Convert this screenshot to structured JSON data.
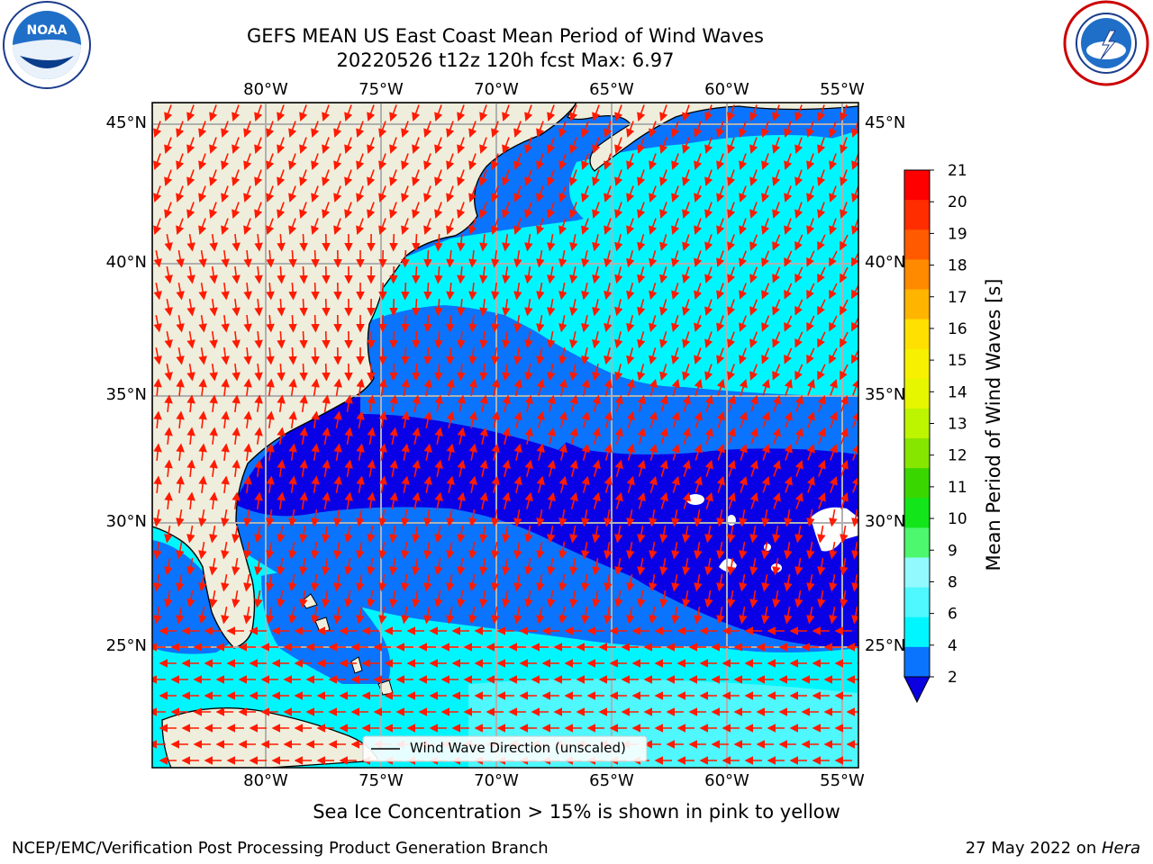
{
  "header": {
    "title_line1": "GEFS MEAN US East Coast Mean Period of Wind Waves",
    "title_line2": "20220526 t12z 120h fcst   Max: 6.97"
  },
  "logos": {
    "left": {
      "text": "NOAA",
      "ring_text": "NATIONAL OCEANIC AND ATMOSPHERIC ADMINISTRATION · U.S. DEPARTMENT OF COMMERCE"
    },
    "right": {
      "ring_text": "NATIONAL WEATHER SERVICE"
    }
  },
  "map": {
    "lon_ticks": [
      "80°W",
      "75°W",
      "70°W",
      "65°W",
      "60°W",
      "55°W"
    ],
    "lat_ticks": [
      "45°N",
      "40°N",
      "35°N",
      "30°N",
      "25°N"
    ],
    "legend_label": "Wind Wave Direction (unscaled)",
    "colors": {
      "land": "#efeedc",
      "band_2_4": "#0b74ff",
      "band_4_6": "#00f6ff",
      "band_6_8": "#4ff7ff",
      "band_lt2": "#0a00e6",
      "arrow": "#ff1a00",
      "grid": "#b0b0b0"
    }
  },
  "colorbar": {
    "label": "Mean Period of Wind Waves [s]",
    "ticks": [
      "21",
      "20",
      "19",
      "18",
      "17",
      "16",
      "15",
      "14",
      "13",
      "12",
      "11",
      "10",
      "9",
      "8",
      "6",
      "4",
      "2"
    ],
    "colors": [
      "#0b00e0",
      "#0b74ff",
      "#00f6ff",
      "#4ff7ff",
      "#92f9ff",
      "#4df76e",
      "#12e61a",
      "#3ad600",
      "#86e600",
      "#bdf400",
      "#e6f500",
      "#f7f000",
      "#ffe000",
      "#ffb400",
      "#ff8a00",
      "#ff5a00",
      "#ff2d00",
      "#ff0000"
    ]
  },
  "footer": {
    "note": "Sea Ice Concentration > 15% is shown in pink to yellow",
    "credit": "NCEP/EMC/Verification Post Processing Product Generation Branch",
    "date": "27 May 2022 on ",
    "host": "Hera"
  }
}
